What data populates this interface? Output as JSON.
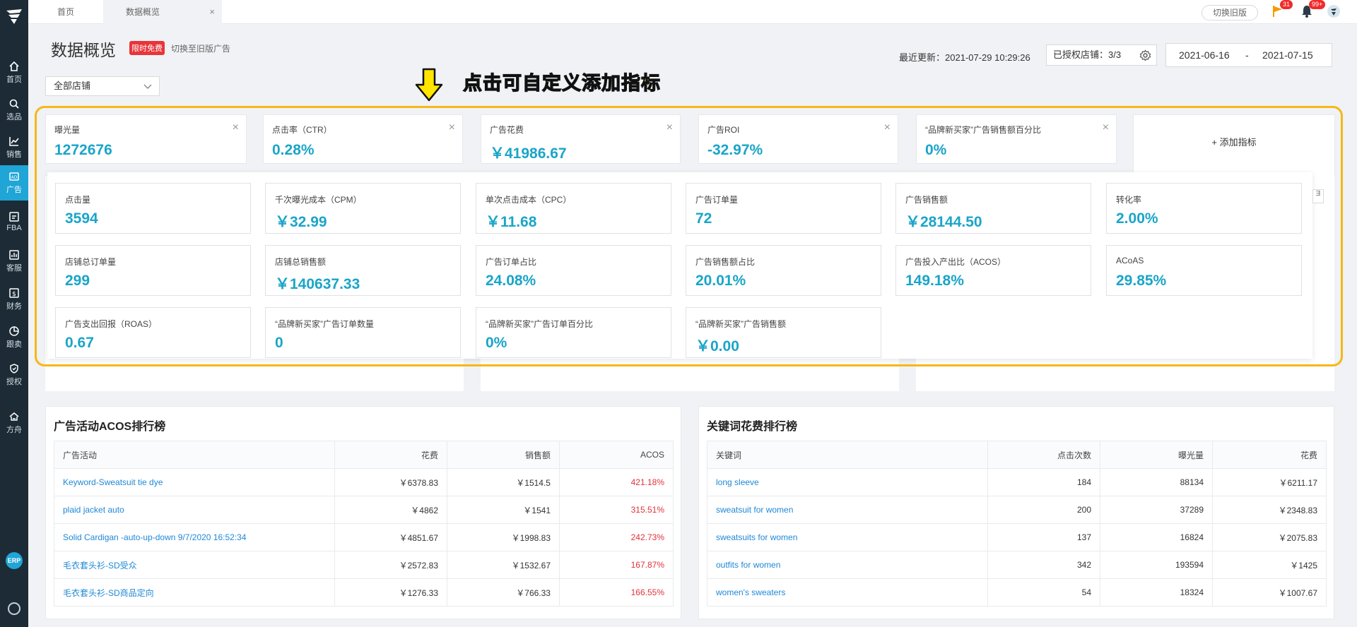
{
  "sidebar": {
    "items": [
      {
        "label": "首页",
        "icon": "home-icon"
      },
      {
        "label": "选品",
        "icon": "search-icon"
      },
      {
        "label": "销售",
        "icon": "chart-icon"
      },
      {
        "label": "广告",
        "icon": "ad-icon"
      },
      {
        "label": "FBA",
        "icon": "fba-icon"
      },
      {
        "label": "客服",
        "icon": "service-icon"
      },
      {
        "label": "财务",
        "icon": "finance-icon"
      },
      {
        "label": "跟卖",
        "icon": "pie-icon"
      },
      {
        "label": "授权",
        "icon": "shield-icon"
      },
      {
        "label": "方舟",
        "icon": "ark-icon"
      }
    ],
    "active": "广告",
    "erp_label": "ERP",
    "accent_color": "#1fa5d6"
  },
  "topbar": {
    "tabs": [
      {
        "label": "首页"
      },
      {
        "label": "数据概览"
      }
    ],
    "close_glyph": "×",
    "old_version_button": "切换旧版",
    "flag_count": "31",
    "bell_count": "99+"
  },
  "header": {
    "title": "数据概览",
    "free_tag": "限时免费",
    "switch_link": "切换至旧版广告",
    "last_update": "最近更新：2021-07-29 10:29:26",
    "authorized_stores": "已授权店铺：3/3",
    "date_start": "2021-06-16",
    "date_sep": "-",
    "date_end": "2021-07-15",
    "store_select": "全部店铺"
  },
  "annotation": {
    "text": "点击可自定义添加指标",
    "color": "#ffe500",
    "border_color": "#f5b816"
  },
  "selected_metrics": [
    {
      "label": "曝光量",
      "value": "1272676"
    },
    {
      "label": "点击率（CTR）",
      "value": "0.28%"
    },
    {
      "label": "广告花费",
      "value": "￥41986.67"
    },
    {
      "label": "广告ROI",
      "value": "-32.97%"
    },
    {
      "label": "“品牌新买家”广告销售额百分比",
      "value": "0%"
    }
  ],
  "add_metric_label": "+ 添加指标",
  "available_metrics": [
    {
      "label": "点击量",
      "value": "3594"
    },
    {
      "label": "千次曝光成本（CPM）",
      "value": "￥32.99"
    },
    {
      "label": "单次点击成本（CPC）",
      "value": "￥11.68"
    },
    {
      "label": "广告订单量",
      "value": "72"
    },
    {
      "label": "广告销售额",
      "value": "￥28144.50"
    },
    {
      "label": "转化率",
      "value": "2.00%"
    },
    {
      "label": "店铺总订单量",
      "value": "299"
    },
    {
      "label": "店铺总销售额",
      "value": "￥140637.33"
    },
    {
      "label": "广告订单占比",
      "value": "24.08%"
    },
    {
      "label": "广告销售额占比",
      "value": "20.01%"
    },
    {
      "label": "广告投入产出比（ACOS）",
      "value": "149.18%"
    },
    {
      "label": "ACoAS",
      "value": "29.85%"
    },
    {
      "label": "广告支出回报（ROAS）",
      "value": "0.67"
    },
    {
      "label": "“品牌新买家”广告订单数量",
      "value": "0"
    },
    {
      "label": "“品牌新买家”广告订单百分比",
      "value": "0%"
    },
    {
      "label": "“品牌新买家”广告销售额",
      "value": "￥0.00"
    }
  ],
  "metric_value_color": "#1aa5c8",
  "partial_box_text": "Ǝ",
  "acos_ranking": {
    "title": "广告活动ACOS排行榜",
    "columns": [
      "广告活动",
      "花费",
      "销售额",
      "ACOS"
    ],
    "rows": [
      [
        "Keyword-Sweatsuit tie dye",
        "￥6378.83",
        "￥1514.5",
        "421.18%"
      ],
      [
        "plaid jacket auto",
        "￥4862",
        "￥1541",
        "315.51%"
      ],
      [
        "Solid Cardigan -auto-up-down 9/7/2020 16:52:34",
        "￥4851.67",
        "￥1998.83",
        "242.73%"
      ],
      [
        "毛衣套头衫-SD受众",
        "￥2572.83",
        "￥1532.67",
        "167.87%"
      ],
      [
        "毛衣套头衫-SD商品定向",
        "￥1276.33",
        "￥766.33",
        "166.55%"
      ]
    ]
  },
  "keyword_ranking": {
    "title": "关键词花费排行榜",
    "columns": [
      "关键词",
      "点击次数",
      "曝光量",
      "花费"
    ],
    "rows": [
      [
        "long sleeve",
        "184",
        "88134",
        "￥6211.17"
      ],
      [
        "sweatsuit for women",
        "200",
        "37289",
        "￥2348.83"
      ],
      [
        "sweatsuits for women",
        "137",
        "16824",
        "￥2075.83"
      ],
      [
        "outfits for women",
        "342",
        "193594",
        "￥1425"
      ],
      [
        "women's sweaters",
        "54",
        "18324",
        "￥1007.67"
      ]
    ]
  }
}
